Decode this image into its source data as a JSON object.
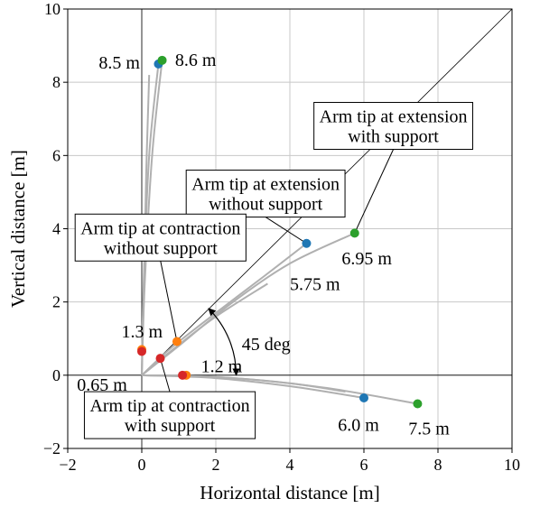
{
  "chart_data": {
    "type": "scatter",
    "xlabel": "Horizontal distance [m]",
    "ylabel": "Vertical distance [m]",
    "xlim": [
      -2,
      10
    ],
    "ylim": [
      -2,
      10
    ],
    "xticks": [
      "−2",
      "0",
      "2",
      "4",
      "6",
      "8",
      "10"
    ],
    "yticks": [
      "−2",
      "0",
      "2",
      "4",
      "6",
      "8",
      "10"
    ],
    "xtick_values": [
      -2,
      0,
      2,
      4,
      6,
      8,
      10
    ],
    "ytick_values": [
      -2,
      0,
      2,
      4,
      6,
      8,
      10
    ],
    "grid": true,
    "colors": {
      "blue": "#1f77b4",
      "green": "#2ca02c",
      "orange": "#ff7f0e",
      "red": "#d62728",
      "trajectory": "#b0b0b0"
    },
    "points": [
      {
        "x": 0.45,
        "y": 8.5,
        "color": "blue"
      },
      {
        "x": 0.55,
        "y": 8.6,
        "color": "green"
      },
      {
        "x": 4.45,
        "y": 3.6,
        "color": "blue"
      },
      {
        "x": 5.75,
        "y": 3.88,
        "color": "green"
      },
      {
        "x": 0.95,
        "y": 0.92,
        "color": "orange"
      },
      {
        "x": 0.5,
        "y": 0.46,
        "color": "red"
      },
      {
        "x": 0.0,
        "y": 0.7,
        "color": "orange"
      },
      {
        "x": 0.0,
        "y": 0.65,
        "color": "red"
      },
      {
        "x": 1.2,
        "y": 0.0,
        "color": "orange"
      },
      {
        "x": 1.1,
        "y": 0.0,
        "color": "red"
      },
      {
        "x": 6.0,
        "y": -0.62,
        "color": "blue"
      },
      {
        "x": 7.45,
        "y": -0.78,
        "color": "green"
      }
    ],
    "trajectories": [
      {
        "x": [
          0,
          0.05,
          0.2,
          0.45
        ],
        "y": [
          0,
          2.5,
          6.0,
          8.5
        ]
      },
      {
        "x": [
          0,
          0.08,
          0.28,
          0.55
        ],
        "y": [
          0,
          2.5,
          6.0,
          8.6
        ]
      },
      {
        "x": [
          0,
          0.05,
          0.12,
          0.2
        ],
        "y": [
          0,
          2.0,
          5.5,
          8.2
        ]
      },
      {
        "x": [
          0,
          0.8,
          2.0,
          3.3,
          4.45
        ],
        "y": [
          0,
          0.75,
          1.7,
          2.7,
          3.6
        ]
      },
      {
        "x": [
          0,
          1.0,
          2.4,
          4.0,
          5.75
        ],
        "y": [
          0,
          0.8,
          1.95,
          3.05,
          3.88
        ]
      },
      {
        "x": [
          0,
          0.9,
          2.0,
          3.4
        ],
        "y": [
          0,
          0.75,
          1.6,
          2.5
        ]
      },
      {
        "x": [
          0,
          2.0,
          4.0,
          6.0
        ],
        "y": [
          0,
          -0.08,
          -0.3,
          -0.62
        ]
      },
      {
        "x": [
          0,
          2.5,
          5.0,
          7.45
        ],
        "y": [
          0,
          -0.08,
          -0.35,
          -0.78
        ]
      },
      {
        "x": [
          0,
          2.0,
          4.0,
          5.5
        ],
        "y": [
          0,
          -0.05,
          -0.22,
          -0.45
        ]
      }
    ],
    "reference_lines": [
      {
        "x": [
          -2,
          10
        ],
        "y": [
          0,
          0
        ]
      },
      {
        "x": [
          0,
          0
        ],
        "y": [
          -2,
          10
        ]
      },
      {
        "x": [
          0,
          10
        ],
        "y": [
          0,
          10
        ]
      }
    ],
    "annotations": [
      {
        "text": "8.5 m",
        "x": -0.05,
        "y": 8.55,
        "anchor": "end"
      },
      {
        "text": "8.6 m",
        "x": 0.9,
        "y": 8.62,
        "anchor": "start"
      },
      {
        "text": "5.75 m",
        "x": 4.0,
        "y": 2.5,
        "anchor": "start"
      },
      {
        "text": "6.95 m",
        "x": 5.4,
        "y": 3.2,
        "anchor": "start"
      },
      {
        "text": "1.3 m",
        "x": -0.55,
        "y": 1.2,
        "anchor": "start"
      },
      {
        "text": "0.65 m",
        "x": -1.75,
        "y": -0.25,
        "anchor": "start"
      },
      {
        "text": "1.2 m",
        "x": 1.6,
        "y": 0.25,
        "anchor": "start"
      },
      {
        "text": "6.0 m",
        "x": 5.3,
        "y": -1.35,
        "anchor": "start"
      },
      {
        "text": "7.5 m",
        "x": 7.2,
        "y": -1.45,
        "anchor": "start"
      },
      {
        "text": "45 deg",
        "x": 2.7,
        "y": 0.86,
        "anchor": "start"
      }
    ],
    "callouts": [
      {
        "lines": [
          "Arm tip at extension",
          "with support"
        ],
        "box_x": 4.65,
        "box_y": 7.45,
        "anchor_x": 5.75,
        "anchor_y": 3.88
      },
      {
        "lines": [
          "Arm tip at extension",
          "without support"
        ],
        "box_x": 1.2,
        "box_y": 5.6,
        "anchor_x": 4.45,
        "anchor_y": 3.6
      },
      {
        "lines": [
          "Arm tip at contraction",
          "without support"
        ],
        "box_x": -1.8,
        "box_y": 4.4,
        "anchor_x": 0.95,
        "anchor_y": 0.92
      },
      {
        "lines": [
          "Arm tip at contraction",
          "with support"
        ],
        "box_x": -1.55,
        "box_y": -0.45,
        "anchor_x": 0.5,
        "anchor_y": 0.46
      }
    ],
    "angle_arc": {
      "radius": 2.55,
      "from_deg": 0,
      "to_deg": 45
    }
  }
}
